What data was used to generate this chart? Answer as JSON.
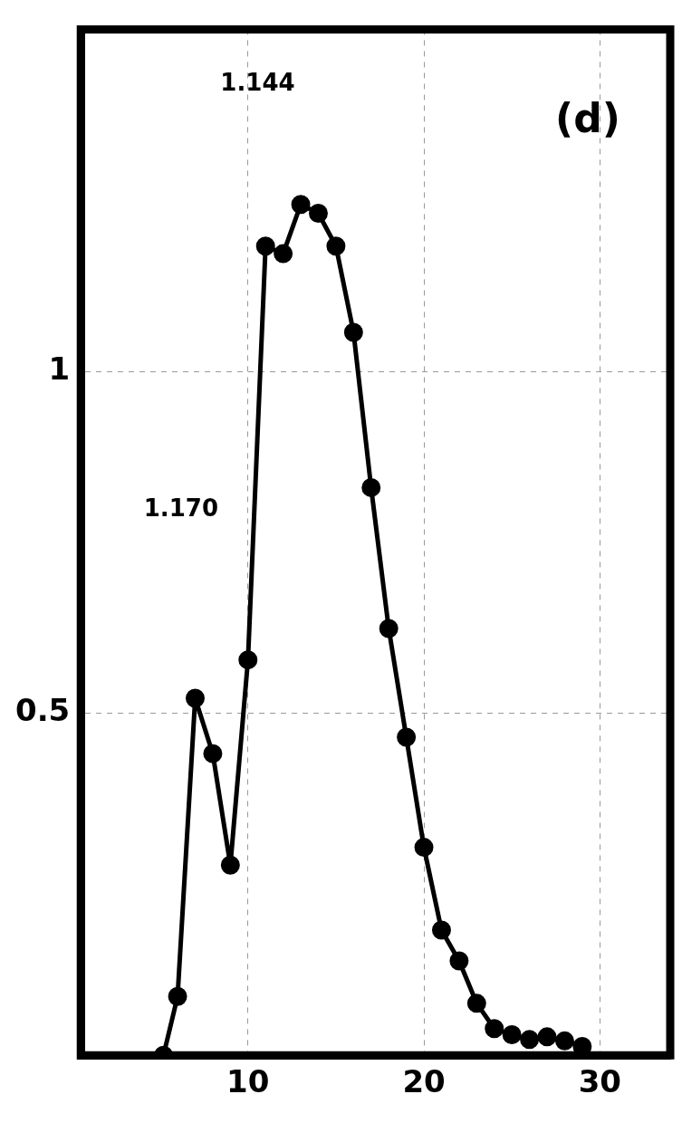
{
  "chart_data": {
    "type": "line",
    "x": [
      5.2,
      6,
      7,
      8,
      9,
      10,
      11,
      12,
      13,
      14,
      15,
      16,
      17,
      18,
      19,
      20,
      21,
      22,
      23,
      24,
      25,
      26,
      27,
      28,
      29
    ],
    "series": [
      {
        "color": "#000000",
        "values": [
          0,
          0.086,
          0.522,
          0.441,
          0.278,
          0.578,
          1.183,
          1.172,
          1.244,
          1.231,
          1.183,
          1.057,
          0.83,
          0.624,
          0.465,
          0.304,
          0.183,
          0.138,
          0.076,
          0.039,
          0.03,
          0.023,
          0.027,
          0.021,
          0.013
        ]
      }
    ],
    "xlim": [
      0.5,
      34
    ],
    "xticks": [
      10,
      20,
      30
    ],
    "ylim": [
      0,
      1.5
    ],
    "yticks": [
      0.5,
      1
    ],
    "grid": true,
    "marker": "circle",
    "line_style": "solid",
    "legend": false,
    "annotations": [
      "1.170",
      "1.144",
      "(d)"
    ]
  }
}
